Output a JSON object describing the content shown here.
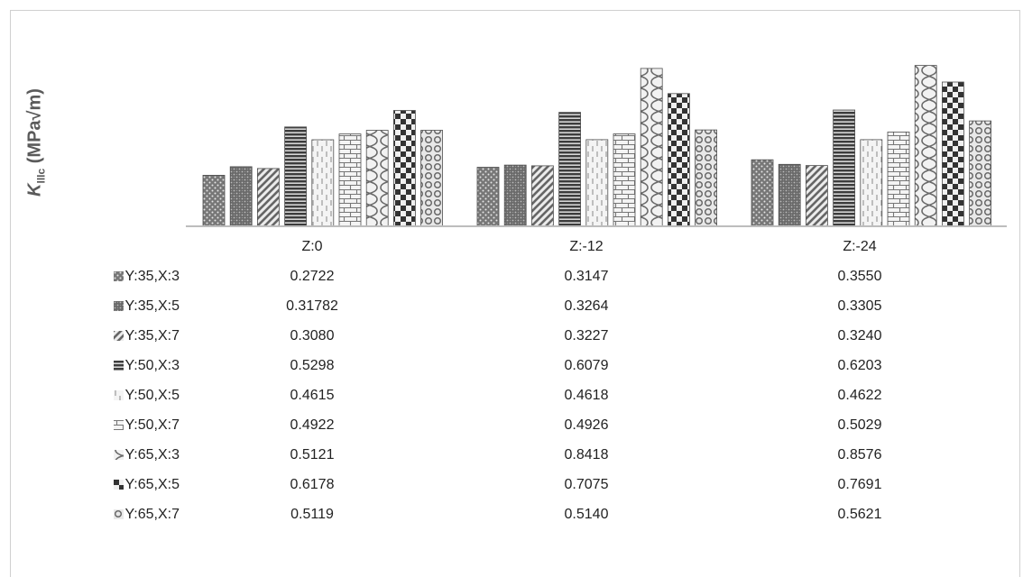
{
  "chart_data": {
    "type": "bar",
    "ylabel_main": "K",
    "ylabel_sub": "IIIc",
    "ylabel_unit": "(MPa√m)",
    "categories": [
      "Z:0",
      "Z:-12",
      "Z:-24"
    ],
    "ylim": [
      0,
      0.9
    ],
    "grid": false,
    "legend_position": "table-left",
    "series": [
      {
        "name": "Y:35,X:3",
        "values": [
          0.2722,
          0.3147,
          0.355
        ],
        "labels": [
          "0.2722",
          "0.3147",
          "0.3550"
        ],
        "pattern": "dots"
      },
      {
        "name": "Y:35,X:5",
        "values": [
          0.31782,
          0.3264,
          0.3305
        ],
        "labels": [
          "0.31782",
          "0.3264",
          "0.3305"
        ],
        "pattern": "dots-dense"
      },
      {
        "name": "Y:35,X:7",
        "values": [
          0.308,
          0.3227,
          0.324
        ],
        "labels": [
          "0.3080",
          "0.3227",
          "0.3240"
        ],
        "pattern": "diagonal"
      },
      {
        "name": "Y:50,X:3",
        "values": [
          0.5298,
          0.6079,
          0.6203
        ],
        "labels": [
          "0.5298",
          "0.6079",
          "0.6203"
        ],
        "pattern": "horizontal"
      },
      {
        "name": "Y:50,X:5",
        "values": [
          0.4615,
          0.4618,
          0.4622
        ],
        "labels": [
          "0.4615",
          "0.4618",
          "0.4622"
        ],
        "pattern": "dashed-vertical"
      },
      {
        "name": "Y:50,X:7",
        "values": [
          0.4922,
          0.4926,
          0.5029
        ],
        "labels": [
          "0.4922",
          "0.4926",
          "0.5029"
        ],
        "pattern": "brick"
      },
      {
        "name": "Y:65,X:3",
        "values": [
          0.5121,
          0.8418,
          0.8576
        ],
        "labels": [
          "0.5121",
          "0.8418",
          "0.8576"
        ],
        "pattern": "wave"
      },
      {
        "name": "Y:65,X:5",
        "values": [
          0.6178,
          0.7075,
          0.7691
        ],
        "labels": [
          "0.6178",
          "0.7075",
          "0.7691"
        ],
        "pattern": "checker"
      },
      {
        "name": "Y:65,X:7",
        "values": [
          0.5119,
          0.514,
          0.5621
        ],
        "labels": [
          "0.5119",
          "0.5140",
          "0.5621"
        ],
        "pattern": "circles"
      }
    ],
    "colors": {
      "bar_fill": "#8a8a8a",
      "bar_dark": "#4a4a4a",
      "bar_light": "#f2f2f2",
      "axis": "#bdbdbd"
    }
  }
}
